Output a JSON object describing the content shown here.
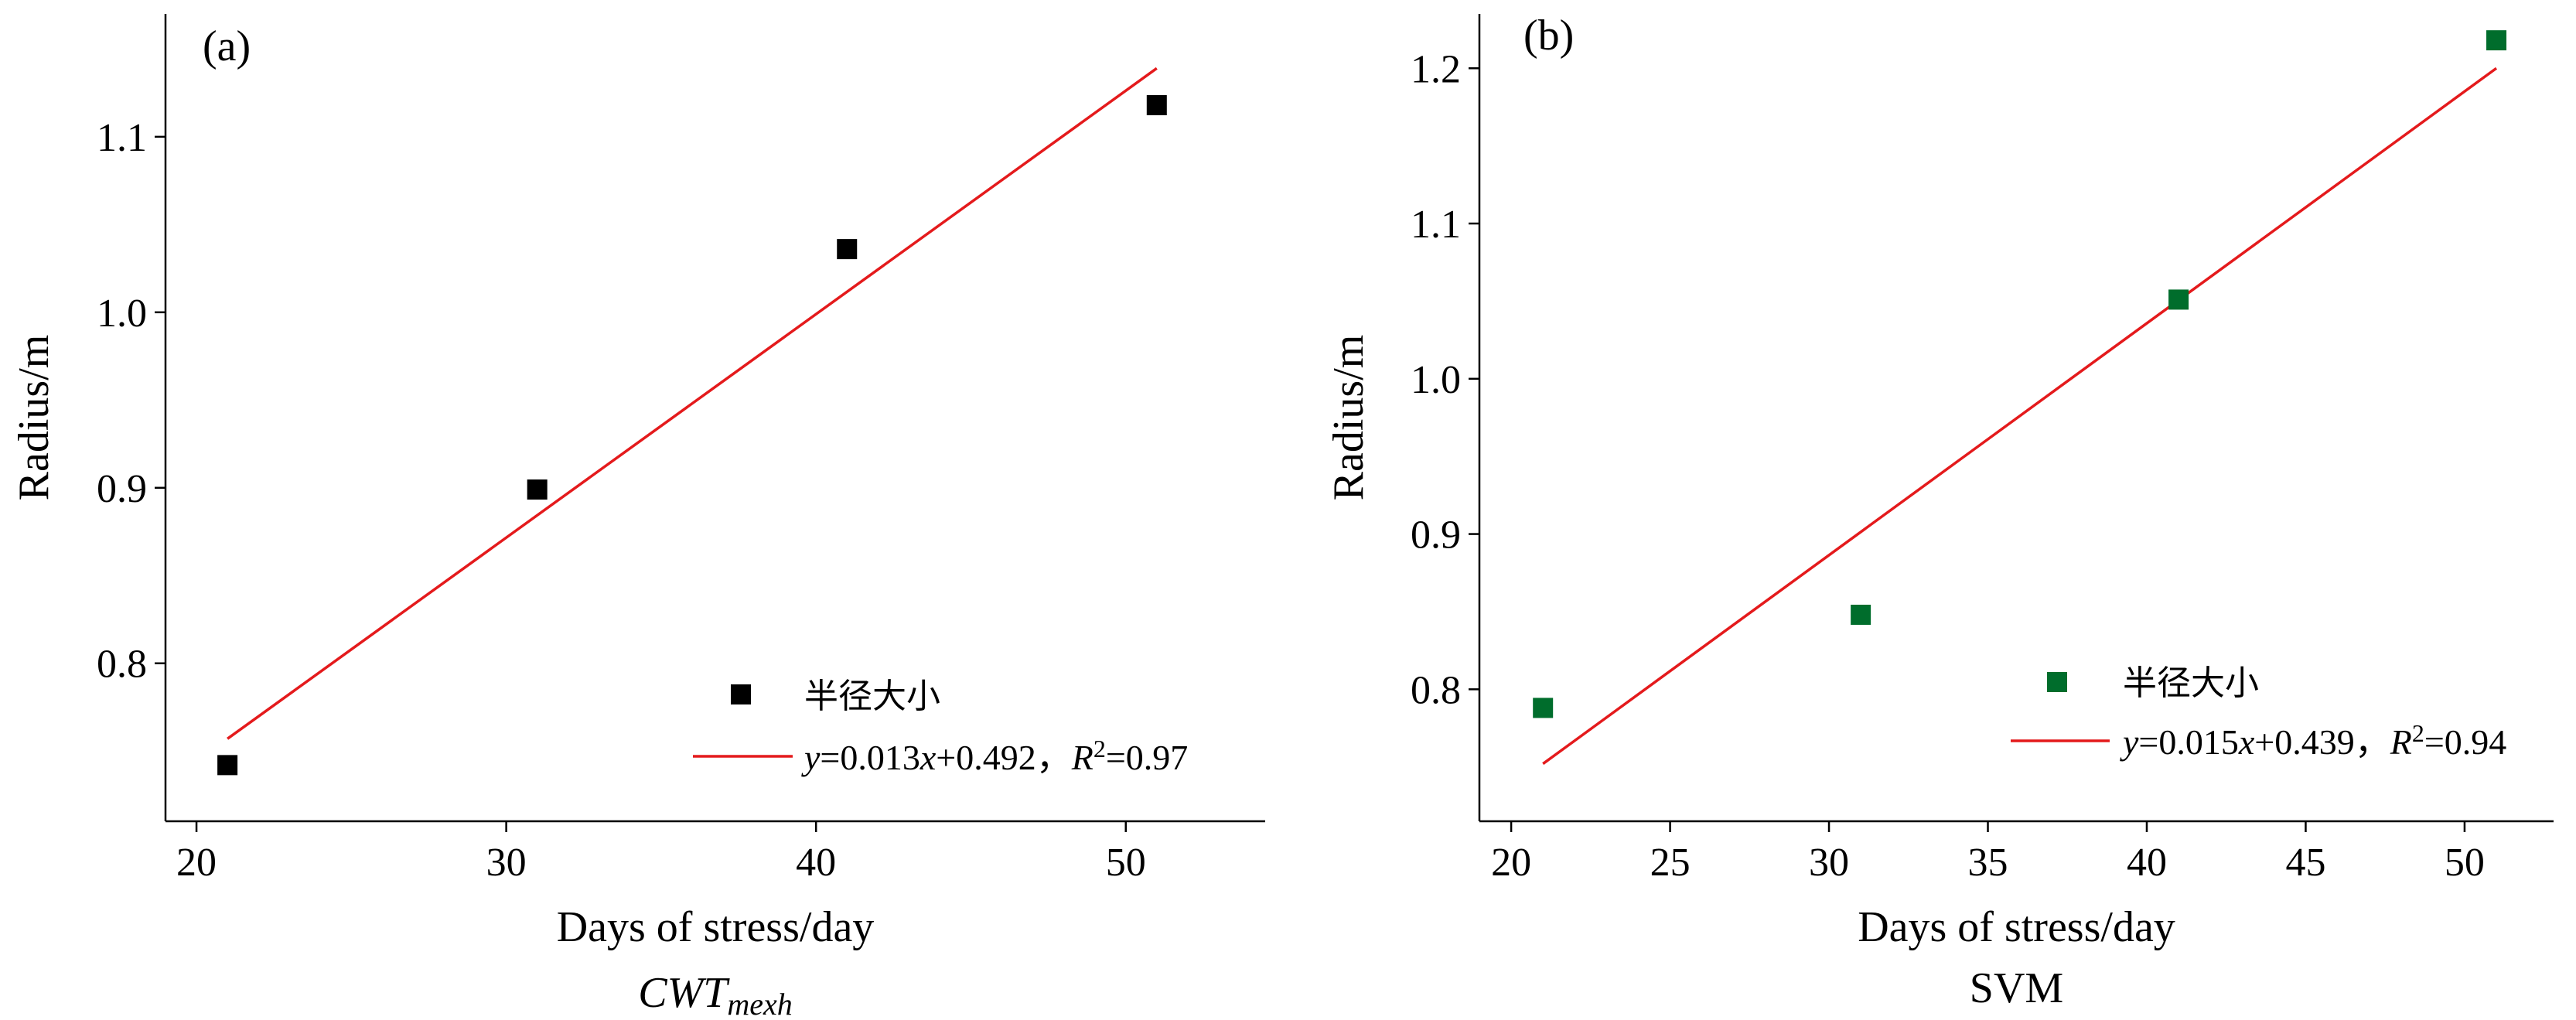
{
  "chart_data": [
    {
      "type": "scatter",
      "panel_label": "(a)",
      "x": [
        21,
        31,
        41,
        51
      ],
      "y": [
        0.742,
        0.899,
        1.036,
        1.118
      ],
      "xlabel": "Days of stress/day",
      "ylabel": "Radius/m",
      "xlim": [
        19,
        54.5
      ],
      "ylim": [
        0.71,
        1.17
      ],
      "xticks": [
        20,
        30,
        40,
        50
      ],
      "yticks": [
        0.8,
        0.9,
        1.0,
        1.1
      ],
      "ytick_labels": [
        "0.8",
        "0.9",
        "1.0",
        "1.1"
      ],
      "marker_color": "#000000",
      "fit": {
        "x": [
          21,
          51
        ],
        "y": [
          0.757,
          1.139
        ],
        "color": "#e41a1c",
        "eq_y": "y",
        "eq_body1": "=0.013",
        "eq_x": "x",
        "eq_body2": "+0.492，",
        "eq_r": "R",
        "eq_sup": "2",
        "eq_body3": "=0.97"
      },
      "legend": {
        "marker_label": "半径大小",
        "placement": "lower-right"
      },
      "caption_main": "CWT",
      "caption_sub": "mexh"
    },
    {
      "type": "scatter",
      "panel_label": "(b)",
      "x": [
        21,
        31,
        41,
        51
      ],
      "y": [
        0.788,
        0.848,
        1.051,
        1.218
      ],
      "xlabel": "Days of stress/day",
      "ylabel": "Radius/m",
      "xlim": [
        19,
        52.8
      ],
      "ylim": [
        0.715,
        1.235
      ],
      "xticks": [
        20,
        25,
        30,
        35,
        40,
        45,
        50
      ],
      "yticks": [
        0.8,
        0.9,
        1.0,
        1.1,
        1.2
      ],
      "ytick_labels": [
        "0.8",
        "0.9",
        "1.0",
        "1.1",
        "1.2"
      ],
      "marker_color": "#006d2c",
      "fit": {
        "x": [
          21,
          51
        ],
        "y": [
          0.752,
          1.2
        ],
        "color": "#e41a1c",
        "eq_y": "y",
        "eq_body1": "=0.015",
        "eq_x": "x",
        "eq_body2": "+0.439，",
        "eq_r": "R",
        "eq_sup": "2",
        "eq_body3": "=0.94"
      },
      "legend": {
        "marker_label": "半径大小",
        "placement": "lower-right"
      },
      "caption_main": "SVM",
      "caption_sub": ""
    }
  ]
}
